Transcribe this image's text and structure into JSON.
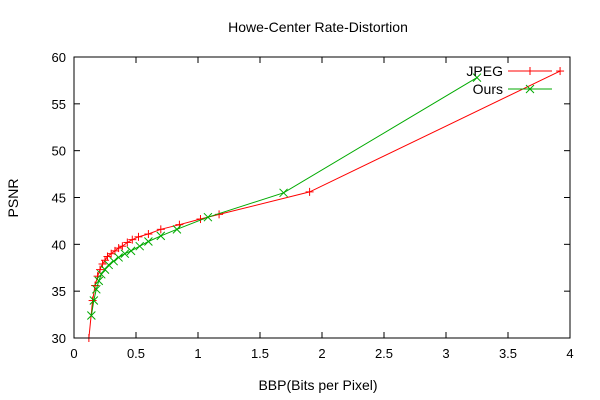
{
  "chart_data": {
    "type": "line",
    "title": "Howe-Center Rate-Distortion",
    "xlabel": "BBP(Bits per Pixel)",
    "ylabel": "PSNR",
    "xlim": [
      0,
      4
    ],
    "ylim": [
      30,
      60
    ],
    "xticks": [
      0,
      0.5,
      1,
      1.5,
      2,
      2.5,
      3,
      3.5,
      4
    ],
    "yticks": [
      30,
      35,
      40,
      45,
      50,
      55,
      60
    ],
    "xtick_labels": [
      "0",
      "0.5",
      "1",
      "1.5",
      "2",
      "2.5",
      "3",
      "3.5",
      "4"
    ],
    "ytick_labels": [
      "30",
      "35",
      "40",
      "45",
      "50",
      "55",
      "60"
    ],
    "grid": false,
    "legend_position": "top-right",
    "series": [
      {
        "name": "JPEG",
        "color": "#ff0000",
        "marker": "plus",
        "points": [
          [
            0.12,
            30.0
          ],
          [
            0.15,
            34.0
          ],
          [
            0.17,
            35.6
          ],
          [
            0.19,
            36.6
          ],
          [
            0.21,
            37.3
          ],
          [
            0.23,
            37.9
          ],
          [
            0.25,
            38.3
          ],
          [
            0.27,
            38.7
          ],
          [
            0.3,
            39.0
          ],
          [
            0.33,
            39.3
          ],
          [
            0.36,
            39.6
          ],
          [
            0.39,
            39.8
          ],
          [
            0.43,
            40.2
          ],
          [
            0.47,
            40.5
          ],
          [
            0.52,
            40.8
          ],
          [
            0.6,
            41.1
          ],
          [
            0.7,
            41.6
          ],
          [
            0.85,
            42.1
          ],
          [
            1.02,
            42.7
          ],
          [
            1.17,
            43.2
          ],
          [
            1.9,
            45.6
          ],
          [
            3.92,
            58.5
          ]
        ]
      },
      {
        "name": "Ours",
        "color": "#00aa00",
        "marker": "cross",
        "points": [
          [
            0.14,
            32.4
          ],
          [
            0.16,
            34.0
          ],
          [
            0.18,
            35.2
          ],
          [
            0.2,
            36.1
          ],
          [
            0.22,
            36.8
          ],
          [
            0.25,
            37.3
          ],
          [
            0.28,
            37.8
          ],
          [
            0.32,
            38.2
          ],
          [
            0.36,
            38.6
          ],
          [
            0.41,
            39.0
          ],
          [
            0.46,
            39.3
          ],
          [
            0.53,
            39.8
          ],
          [
            0.6,
            40.3
          ],
          [
            0.7,
            40.9
          ],
          [
            0.83,
            41.6
          ],
          [
            1.08,
            42.9
          ],
          [
            1.69,
            45.5
          ],
          [
            3.25,
            57.8
          ]
        ]
      }
    ]
  }
}
